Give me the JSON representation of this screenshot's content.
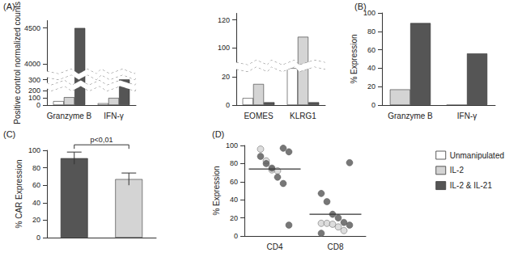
{
  "chart_data": [
    {
      "panel": "(A)",
      "type": "bar",
      "categories": [
        "Granzyme B",
        "IFN-γ"
      ],
      "y_label": "Positive control normalized counts",
      "ylim": [
        0,
        4600
      ],
      "yticks": [
        0,
        100,
        200,
        300,
        4000,
        4500
      ],
      "y_breaks": [
        [
          230,
          260
        ],
        [
          340,
          3900
        ]
      ],
      "legend": "bottom right",
      "series": [
        {
          "name": "Unmanipulated",
          "color": "#ffffff",
          "values": [
            55,
            25
          ]
        },
        {
          "name": "IL-2",
          "color": "#d4d4d4",
          "values": [
            110,
            100
          ]
        },
        {
          "name": "IL-2 & IL-21",
          "color": "#555555",
          "values": [
            4500,
            305
          ]
        }
      ]
    },
    {
      "type": "bar",
      "categories": [
        "EOMES",
        "KLRG1"
      ],
      "ylim": [
        0,
        125
      ],
      "yticks": [
        0,
        20,
        100,
        120
      ],
      "y_breaks": [
        [
          26,
          90
        ]
      ],
      "series": [
        {
          "name": "Unmanipulated",
          "color": "#ffffff",
          "values": [
            5,
            30
          ]
        },
        {
          "name": "IL-2",
          "color": "#d4d4d4",
          "values": [
            15,
            108
          ]
        },
        {
          "name": "IL-2 & IL-21",
          "color": "#555555",
          "values": [
            2,
            2
          ]
        }
      ]
    },
    {
      "panel": "(B)",
      "type": "bar",
      "categories": [
        "Granzyme B",
        "IFN-γ"
      ],
      "y_label": "% Expression",
      "ylim": [
        0,
        100
      ],
      "yticks": [
        0,
        20,
        40,
        60,
        80,
        100
      ],
      "series": [
        {
          "name": "IL-2",
          "color": "#d4d4d4",
          "values": [
            17,
            0
          ]
        },
        {
          "name": "IL-2 & IL-21",
          "color": "#555555",
          "values": [
            89,
            56
          ]
        }
      ]
    },
    {
      "panel": "(C)",
      "type": "bar",
      "categories": [
        null,
        null
      ],
      "y_label": "% CAR Expression",
      "ylim": [
        0,
        100
      ],
      "yticks": [
        0,
        20,
        40,
        60,
        80,
        100
      ],
      "values": [
        91,
        67
      ],
      "errors": [
        7,
        7
      ],
      "colors": [
        "#555555",
        "#d4d4d4"
      ],
      "annotation": "p<0,01"
    },
    {
      "panel": "(D)",
      "type": "scatter",
      "categories": [
        "CD4",
        "CD8"
      ],
      "y_label": "% Expression",
      "ylim": [
        0,
        100
      ],
      "yticks": [
        0,
        20,
        40,
        60,
        80,
        100
      ],
      "medians": [
        74,
        24
      ],
      "series": [
        {
          "name": "IL-2",
          "color": "#d4d4d4",
          "marker": "circle",
          "values": [
            [
              96,
              83,
              73,
              72
            ],
            [
              14,
              14,
              13,
              10,
              6
            ]
          ]
        },
        {
          "name": "IL-2 & IL-21",
          "color": "#555555",
          "marker": "circle",
          "values": [
            [
              97,
              93,
              88,
              80,
              75,
              65,
              58,
              12
            ],
            [
              81,
              47,
              38,
              24,
              20,
              15,
              12,
              3
            ]
          ]
        }
      ]
    }
  ]
}
